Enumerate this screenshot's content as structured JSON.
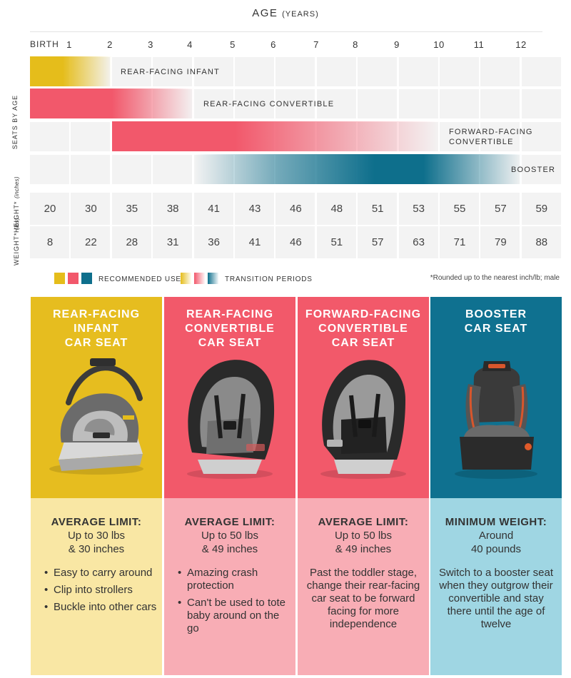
{
  "chart_data": {
    "type": "gantt",
    "title": "AGE",
    "title_unit": "(YEARS)",
    "x_ticks": [
      "BIRTH",
      "1",
      "2",
      "3",
      "4",
      "5",
      "6",
      "7",
      "8",
      "9",
      "10",
      "11",
      "12"
    ],
    "xlim": [
      0,
      12.5
    ],
    "y_axis_label": "SEATS BY AGE",
    "series": [
      {
        "name": "REAR-FACING INFANT",
        "start_age": 0,
        "recommended_end_age": 0.8,
        "transition_end_age": 2,
        "color": "#e5bd1b"
      },
      {
        "name": "REAR-FACING CONVERTIBLE",
        "start_age": 0,
        "recommended_end_age": 2,
        "transition_end_age": 4,
        "color": "#f2586b"
      },
      {
        "name": "FORWARD-FACING CONVERTIBLE",
        "start_age": 2,
        "recommended_end_age": 5,
        "transition_end_age": 10,
        "color": "#f2586b"
      },
      {
        "name": "BOOSTER",
        "start_age": 4,
        "recommended_end_age": 8.5,
        "transition_end_age": 12,
        "color": "#0e6f8c"
      }
    ],
    "rows": [
      {
        "label": "HEIGHT*",
        "unit": "(inches)",
        "values": [
          20,
          30,
          35,
          38,
          41,
          43,
          46,
          48,
          51,
          53,
          55,
          57,
          59
        ]
      },
      {
        "label": "WEIGHT*",
        "unit": "(lbs)",
        "values": [
          8,
          22,
          28,
          31,
          36,
          41,
          46,
          51,
          57,
          63,
          71,
          79,
          88
        ]
      }
    ],
    "legend": {
      "recommended": "RECOMMENDED USE",
      "transition": "TRANSITION PERIODS",
      "colors": [
        "#e5bd1b",
        "#f2586b",
        "#0e6f8c"
      ]
    },
    "footnote": "*Rounded up to the nearest inch/lb; male"
  },
  "columns": [
    {
      "title_lines": [
        "REAR-FACING",
        "INFANT",
        "CAR SEAT"
      ],
      "top_color": "#e6bd1f",
      "bottom_color": "#f9e7a4",
      "seat_icon": "infant-car-seat",
      "limit_head": "AVERAGE LIMIT:",
      "limit_lines": [
        "Up to 30 lbs",
        "& 30 inches"
      ],
      "bullets": [
        "Easy to carry around",
        "Clip into strollers",
        "Buckle into other cars"
      ]
    },
    {
      "title_lines": [
        "REAR-FACING",
        "CONVERTIBLE",
        "CAR SEAT"
      ],
      "top_color": "#f2596a",
      "bottom_color": "#f8adb5",
      "seat_icon": "convertible-car-seat",
      "limit_head": "AVERAGE LIMIT:",
      "limit_lines": [
        "Up to 50 lbs",
        "& 49 inches"
      ],
      "bullets": [
        "Amazing crash protection",
        "Can't be used to tote baby around on the go"
      ]
    },
    {
      "title_lines": [
        "FORWARD-FACING",
        "CONVERTIBLE",
        "CAR SEAT"
      ],
      "top_color": "#f2596a",
      "bottom_color": "#f8adb5",
      "seat_icon": "convertible-car-seat",
      "limit_head": "AVERAGE LIMIT:",
      "limit_lines": [
        "Up to 50 lbs",
        "& 49 inches"
      ],
      "paragraph": "Past the toddler stage, change their rear-facing car seat to be forward facing for more independence"
    },
    {
      "title_lines": [
        "BOOSTER",
        "CAR SEAT"
      ],
      "top_color": "#0f7190",
      "bottom_color": "#9fd6e3",
      "seat_icon": "booster-car-seat",
      "limit_head": "MINIMUM WEIGHT:",
      "limit_lines": [
        "Around",
        "40 pounds"
      ],
      "paragraph": "Switch to a booster seat when they outgrow their convertible and stay there until the age of twelve"
    }
  ]
}
